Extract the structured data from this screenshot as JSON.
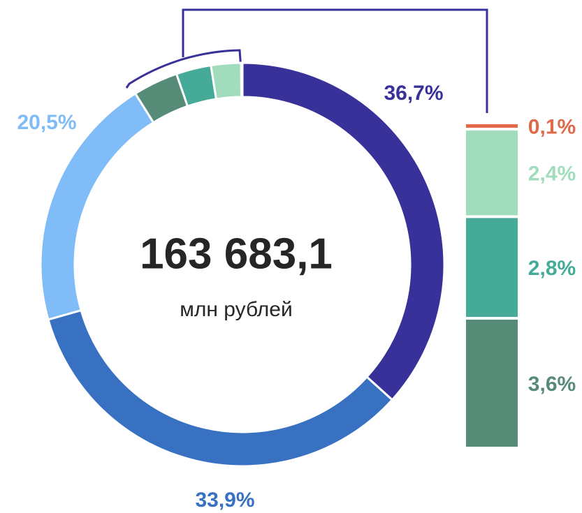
{
  "chart_data": {
    "type": "pie",
    "center_value": "163 683,1",
    "center_label": "млн рублей",
    "values": [
      36.7,
      33.9,
      20.5,
      3.6,
      2.8,
      2.4,
      0.1
    ],
    "value_labels": [
      "36,7%",
      "33,9%",
      "20,5%",
      "3,6%",
      "2,8%",
      "2,4%",
      "0,1%"
    ],
    "colors": [
      "#38319a",
      "#3871c1",
      "#7fbcf8",
      "#568b78",
      "#45aa98",
      "#a1dcbc",
      "#e0694a"
    ]
  }
}
